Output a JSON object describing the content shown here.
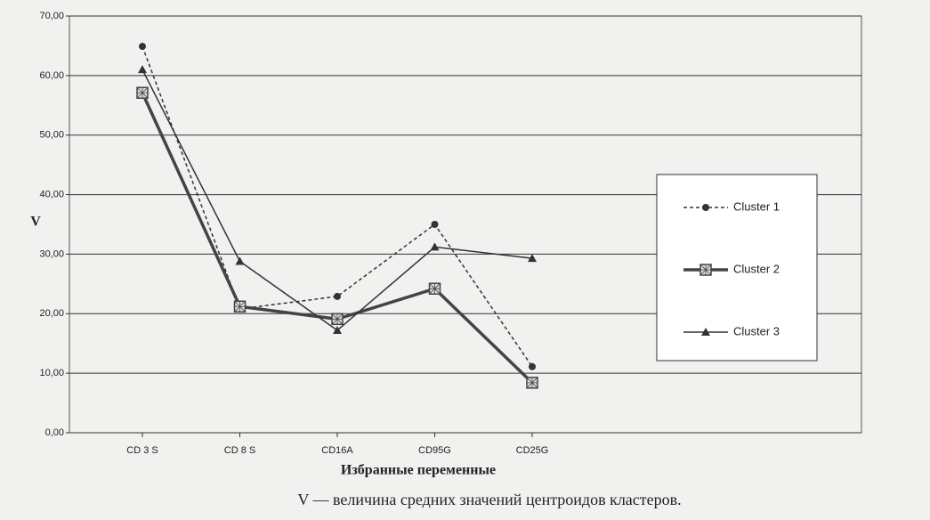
{
  "chart_data": {
    "type": "line",
    "xlabel": "Избранные переменные",
    "ylabel": "V",
    "caption": "V — величина средних значений центроидов кластеров.",
    "categories": [
      "CD 3 S",
      "CD 8 S",
      "CD16A",
      "CD95G",
      "CD25G"
    ],
    "series": [
      {
        "name": "Cluster 1",
        "color": "#333333",
        "dash": true,
        "width": 1.5,
        "marker": "circle",
        "values": [
          64.9,
          20.8,
          22.9,
          35.0,
          11.1
        ]
      },
      {
        "name": "Cluster 2",
        "color": "#444444",
        "dash": false,
        "width": 3.5,
        "marker": "square",
        "values": [
          57.1,
          21.2,
          19.1,
          24.2,
          8.4
        ]
      },
      {
        "name": "Cluster 3",
        "color": "#333333",
        "dash": false,
        "width": 1.5,
        "marker": "triangle",
        "values": [
          61.0,
          28.8,
          17.2,
          31.2,
          29.3
        ]
      }
    ],
    "ylim": [
      0,
      70
    ],
    "yticks": [
      {
        "value": 0,
        "label": "0,00"
      },
      {
        "value": 10,
        "label": "10,00"
      },
      {
        "value": 20,
        "label": "20,00"
      },
      {
        "value": 30,
        "label": "30,00"
      },
      {
        "value": 40,
        "label": "40,00"
      },
      {
        "value": 50,
        "label": "50,00"
      },
      {
        "value": 60,
        "label": "60,00"
      },
      {
        "value": 70,
        "label": "70,00"
      }
    ],
    "grid": true
  }
}
